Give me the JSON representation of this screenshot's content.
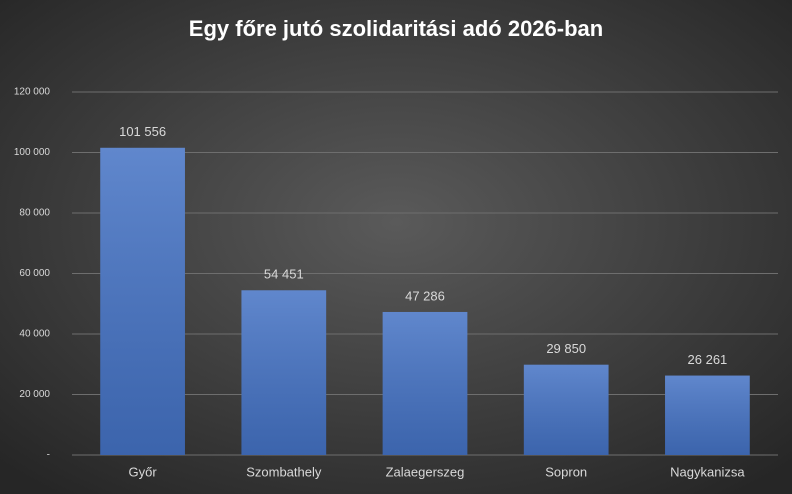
{
  "chart_data": {
    "type": "bar",
    "title": "Egy főre jutó szolidaritási adó 2026-ban",
    "categories": [
      "Győr",
      "Szombathely",
      "Zalaegerszeg",
      "Sopron",
      "Nagykanizsa"
    ],
    "values": [
      101556,
      54451,
      47286,
      29850,
      26261
    ],
    "value_labels": [
      "101 556",
      "54 451",
      "47 286",
      "29 850",
      "26 261"
    ],
    "color": "#4472c4",
    "ylim": [
      0,
      120000
    ],
    "yticks": [
      {
        "value": 0,
        "label": "-"
      },
      {
        "value": 20000,
        "label": "20 000"
      },
      {
        "value": 40000,
        "label": "40 000"
      },
      {
        "value": 60000,
        "label": "60 000"
      },
      {
        "value": 80000,
        "label": "80 000"
      },
      {
        "value": 100000,
        "label": "100 000"
      },
      {
        "value": 120000,
        "label": "120 000"
      }
    ],
    "grid": true
  }
}
